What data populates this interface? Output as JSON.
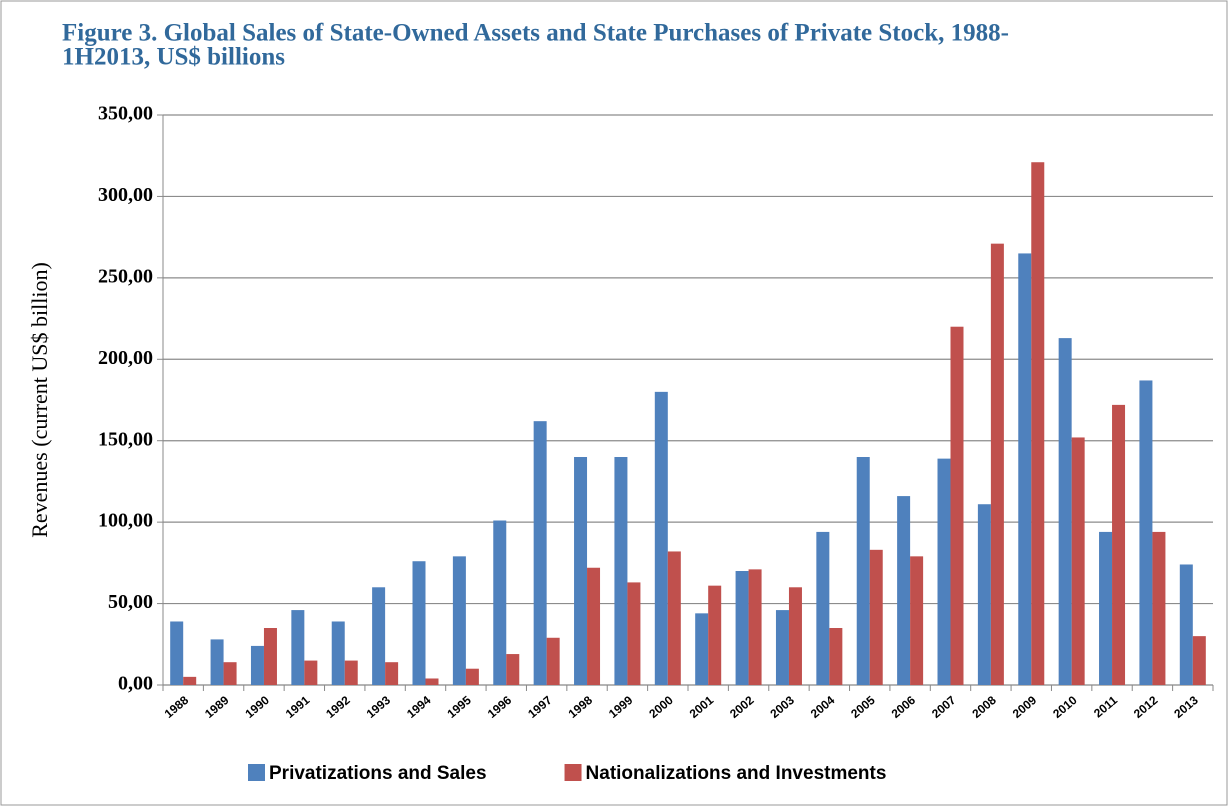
{
  "chart_data": {
    "type": "bar",
    "title": [
      "Figure 3. Global Sales of State-Owned Assets and State Purchases of Private Stock, 1988-",
      "1H2013, US$ billions"
    ],
    "y_label": "Revenues (current US$ billion)",
    "categories": [
      "1988",
      "1989",
      "1990",
      "1991",
      "1992",
      "1993",
      "1994",
      "1995",
      "1996",
      "1997",
      "1998",
      "1999",
      "2000",
      "2001",
      "2002",
      "2003",
      "2004",
      "2005",
      "2006",
      "2007",
      "2008",
      "2009",
      "2010",
      "2011",
      "2012",
      "2013"
    ],
    "series": [
      {
        "name": "Privatizations and Sales",
        "color": "#4f81bd",
        "values": [
          39,
          28,
          24,
          46,
          39,
          60,
          76,
          79,
          101,
          162,
          140,
          140,
          180,
          44,
          70,
          46,
          94,
          140,
          116,
          139,
          111,
          265,
          213,
          94,
          187,
          74
        ]
      },
      {
        "name": "Nationalizations and Investments",
        "color": "#c0504d",
        "values": [
          5,
          14,
          35,
          15,
          15,
          14,
          4,
          10,
          19,
          29,
          72,
          63,
          82,
          61,
          71,
          60,
          35,
          83,
          79,
          220,
          271,
          321,
          152,
          172,
          94,
          30
        ]
      }
    ],
    "ylim": [
      0,
      350
    ],
    "yticks": [
      {
        "value": 0,
        "label": "0,00"
      },
      {
        "value": 50,
        "label": "50,00"
      },
      {
        "value": 100,
        "label": "100,00"
      },
      {
        "value": 150,
        "label": "150,00"
      },
      {
        "value": 200,
        "label": "200,00"
      },
      {
        "value": 250,
        "label": "250,00"
      },
      {
        "value": 300,
        "label": "300,00"
      },
      {
        "value": 350,
        "label": "350,00"
      }
    ],
    "grid": true,
    "legend": "bottom"
  }
}
